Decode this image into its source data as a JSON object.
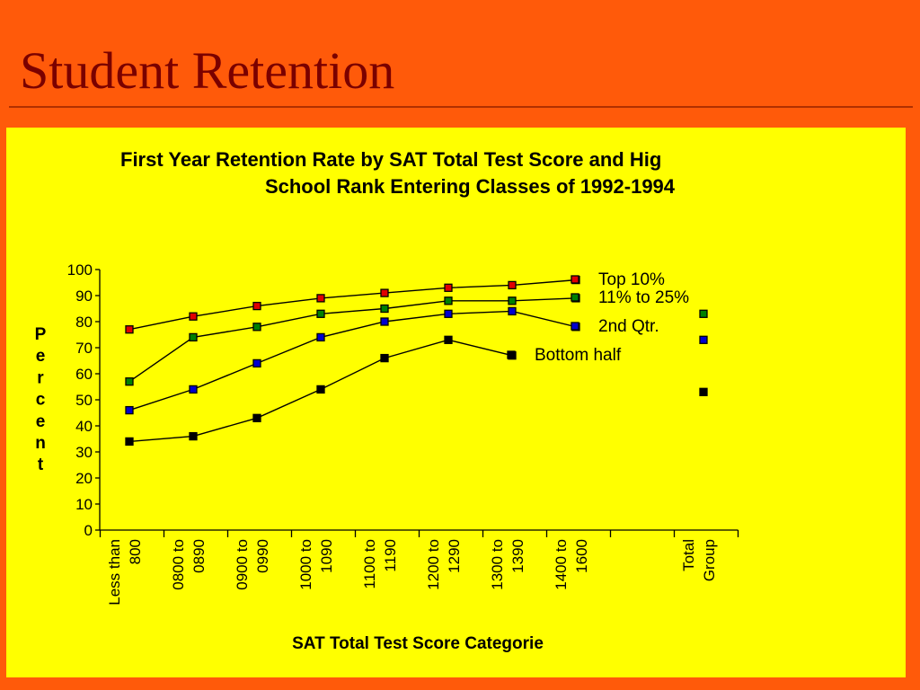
{
  "slide": {
    "title": "Student Retention"
  },
  "colors": {
    "background": "#ff5a0a",
    "panel": "#ffff00",
    "title": "#7a0000"
  },
  "chart_data": {
    "type": "line",
    "title_lines": [
      "First Year Retention Rate by SAT Total Test Score and Hig",
      "School Rank  Entering Classes of 1992-1994"
    ],
    "xlabel": "SAT Total Test Score Categorie",
    "ylabel": "Percent",
    "ylim": [
      0,
      100
    ],
    "yticks": [
      0,
      10,
      20,
      30,
      40,
      50,
      60,
      70,
      80,
      90,
      100
    ],
    "categories": [
      [
        "Less than",
        "800"
      ],
      [
        "0800 to",
        "0890"
      ],
      [
        "0900 to",
        "0990"
      ],
      [
        "1000 to",
        "1090"
      ],
      [
        "1100 to",
        "1190"
      ],
      [
        "1200 to",
        "1290"
      ],
      [
        "1300 to",
        "1390"
      ],
      [
        "1400 to",
        "1600"
      ],
      [
        "",
        ""
      ],
      [
        "Total",
        "Group"
      ]
    ],
    "legend_position": "right",
    "grid": false,
    "series": [
      {
        "name": "Top 10%",
        "color": "#e00000",
        "values": [
          77,
          82,
          86,
          89,
          91,
          93,
          94,
          96,
          null,
          null
        ]
      },
      {
        "name": "11% to 25%",
        "color": "#008000",
        "values": [
          57,
          74,
          78,
          83,
          85,
          88,
          88,
          89,
          null,
          83
        ]
      },
      {
        "name": "2nd Qtr.",
        "color": "#0000d0",
        "values": [
          46,
          54,
          64,
          74,
          80,
          83,
          84,
          78,
          null,
          73
        ]
      },
      {
        "name": "Bottom half",
        "color": "#000000",
        "values": [
          34,
          36,
          43,
          54,
          66,
          73,
          67,
          null,
          null,
          53
        ]
      }
    ]
  }
}
